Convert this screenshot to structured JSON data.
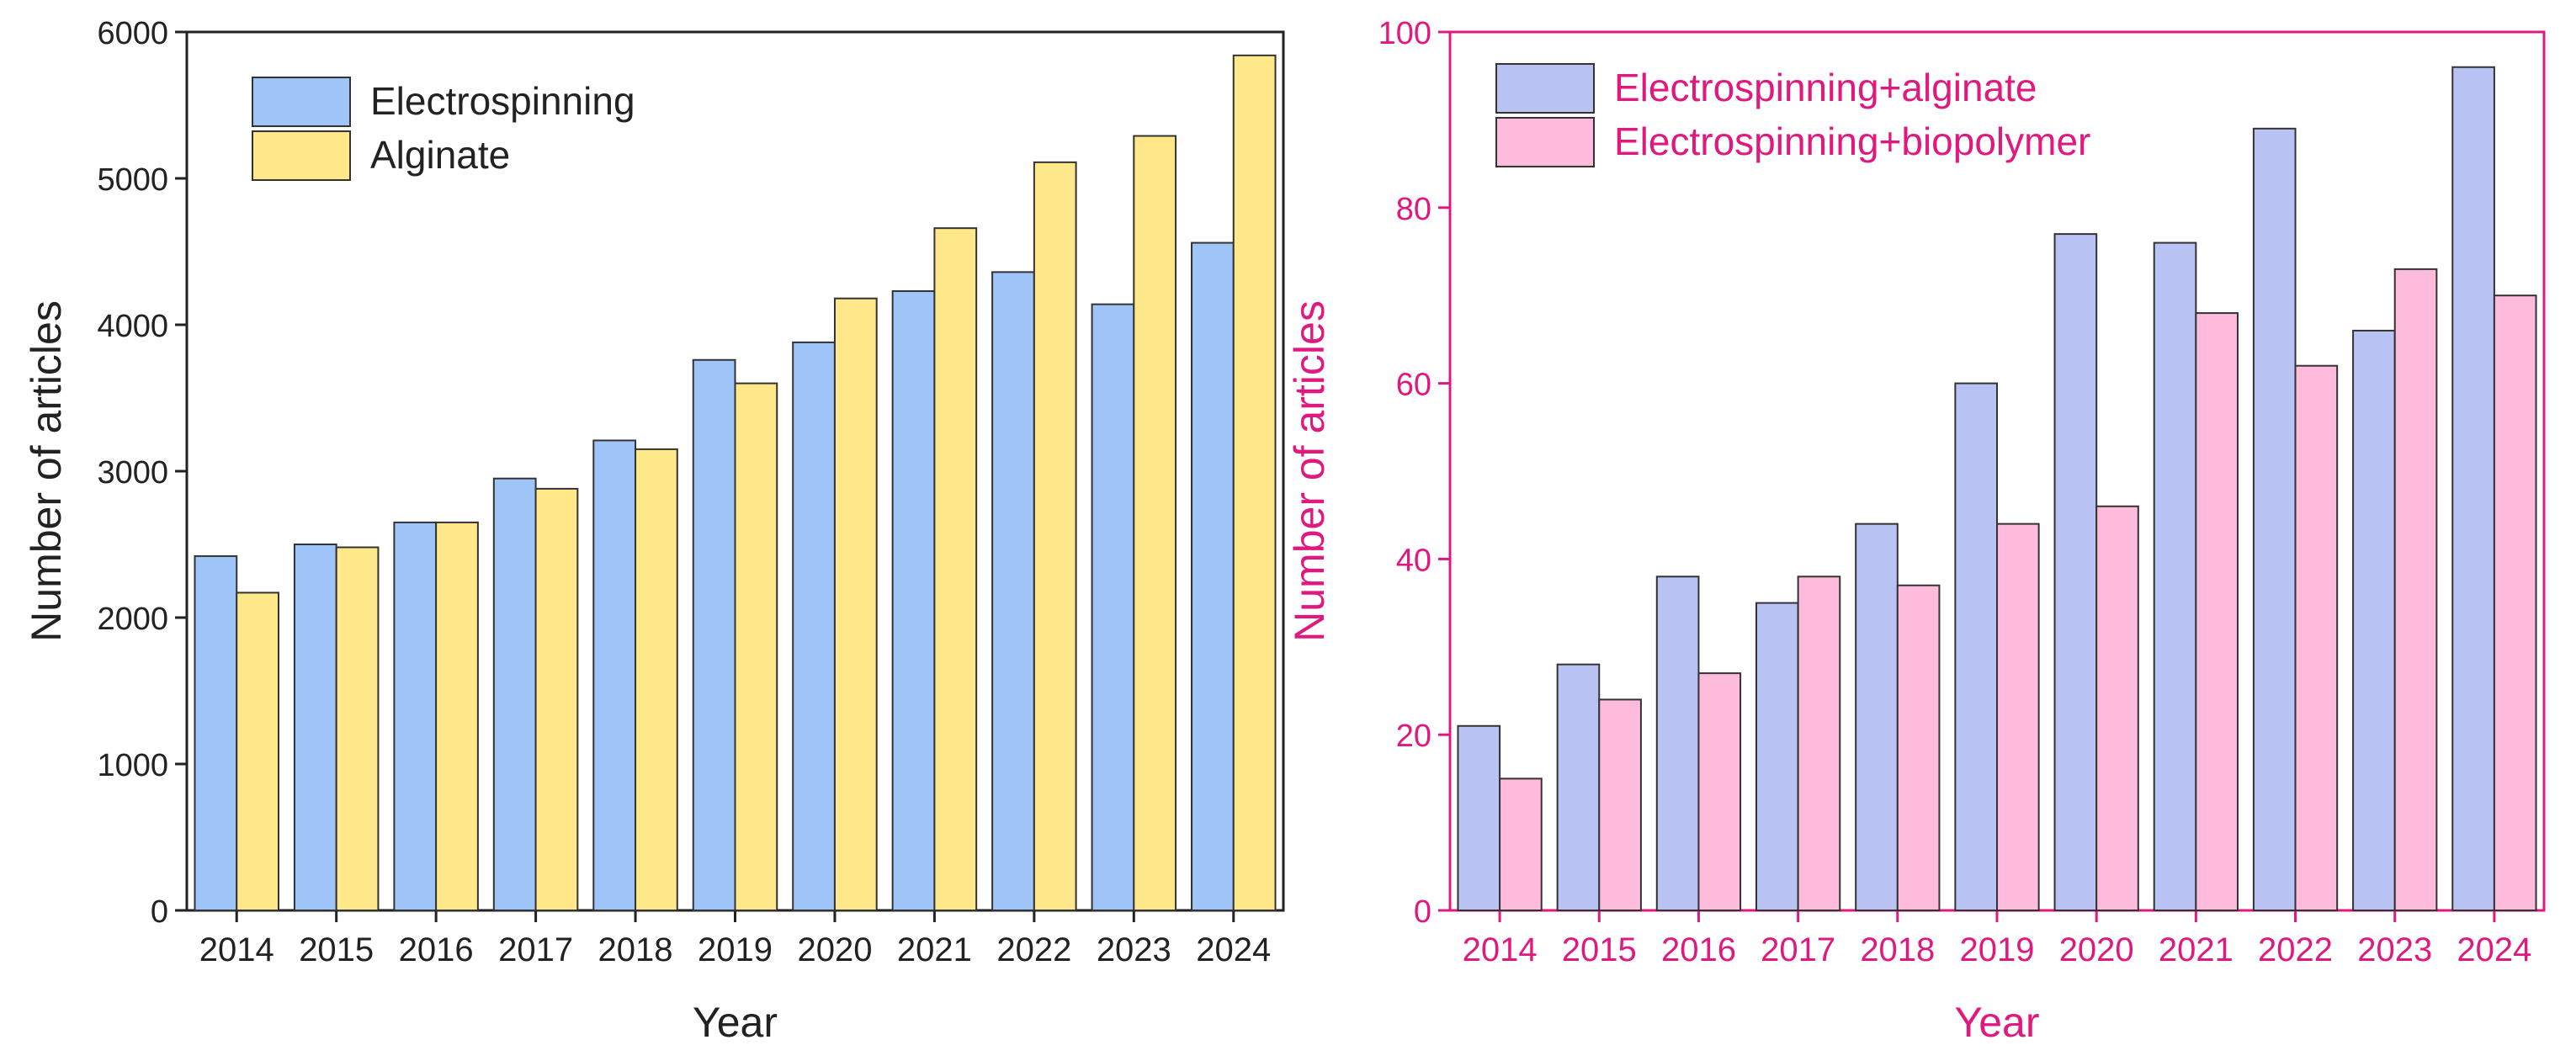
{
  "chart_data": [
    {
      "type": "bar",
      "categories": [
        "2014",
        "2015",
        "2016",
        "2017",
        "2018",
        "2019",
        "2020",
        "2021",
        "2022",
        "2023",
        "2024"
      ],
      "series": [
        {
          "name": "Electrospinning",
          "values": [
            2420,
            2500,
            2650,
            2950,
            3210,
            3760,
            3880,
            4230,
            4360,
            4140,
            4560
          ],
          "color": "#9fc5f8"
        },
        {
          "name": "Alginate",
          "values": [
            2170,
            2480,
            2650,
            2880,
            3150,
            3600,
            4180,
            4660,
            5110,
            5290,
            5840
          ],
          "color": "#ffe88a"
        }
      ],
      "xlabel": "Year",
      "ylabel": "Number of articles",
      "ylim": [
        0,
        6000
      ],
      "yticks": [
        0,
        1000,
        2000,
        3000,
        4000,
        5000,
        6000
      ],
      "legend_position": "top-left",
      "axis_color": "#222222",
      "grid": false
    },
    {
      "type": "bar",
      "categories": [
        "2014",
        "2015",
        "2016",
        "2017",
        "2018",
        "2019",
        "2020",
        "2021",
        "2022",
        "2023",
        "2024"
      ],
      "series": [
        {
          "name": "Electrospinning+alginate",
          "values": [
            21,
            28,
            38,
            35,
            44,
            60,
            77,
            76,
            89,
            66,
            96
          ],
          "color": "#b9c3f3"
        },
        {
          "name": "Electrospinning+biopolymer",
          "values": [
            15,
            24,
            27,
            38,
            37,
            44,
            46,
            68,
            62,
            73,
            70
          ],
          "color": "#ffbbdc"
        }
      ],
      "xlabel": "Year",
      "ylabel": "Number of articles",
      "ylim": [
        0,
        100
      ],
      "yticks": [
        0,
        20,
        40,
        60,
        80,
        100
      ],
      "legend_position": "top-left",
      "axis_color": "#e0197f",
      "grid": false
    }
  ]
}
